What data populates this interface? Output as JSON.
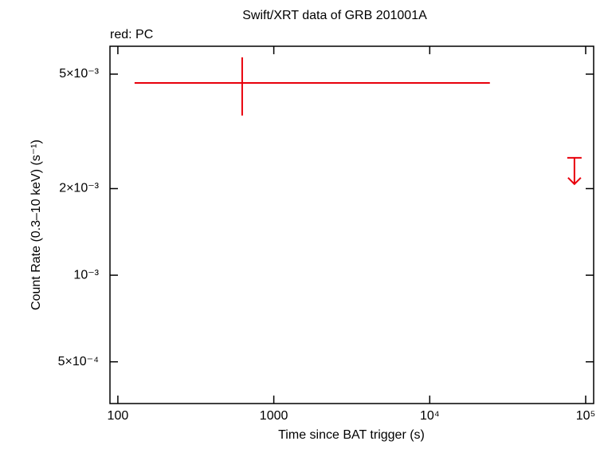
{
  "chart_data": {
    "type": "scatter",
    "title": "Swift/XRT data of GRB 201001A",
    "annotation": "red: PC",
    "x_label": "Time since BAT trigger (s)",
    "y_label": "Count Rate (0.3–10 keV) (s⁻¹)",
    "log_x": true,
    "log_y": true,
    "xlim": [
      89,
      112500
    ],
    "ylim": [
      0.000358,
      0.00625
    ],
    "xticks": [
      100,
      1000,
      {
        "value": 10000,
        "label": "10⁴"
      },
      {
        "value": 100000,
        "label": "10⁵"
      }
    ],
    "yticks": [
      {
        "value": 0.0005,
        "label": "5×10⁻⁴"
      },
      {
        "value": 0.001,
        "label": "10⁻³"
      },
      {
        "value": 0.002,
        "label": "2×10⁻³"
      },
      {
        "value": 0.005,
        "label": "5×10⁻³"
      }
    ],
    "series": [
      {
        "color": "#e8000b",
        "x": [
          627
        ],
        "x_low": [
          128
        ],
        "x_high": [
          24300
        ],
        "y": [
          0.00466
        ],
        "y_low": [
          0.00359
        ],
        "y_high": [
          0.00572
        ]
      }
    ],
    "upper_limits": {
      "color": "#e8000b",
      "x": [
        84700
      ],
      "y": [
        0.00256
      ]
    }
  }
}
